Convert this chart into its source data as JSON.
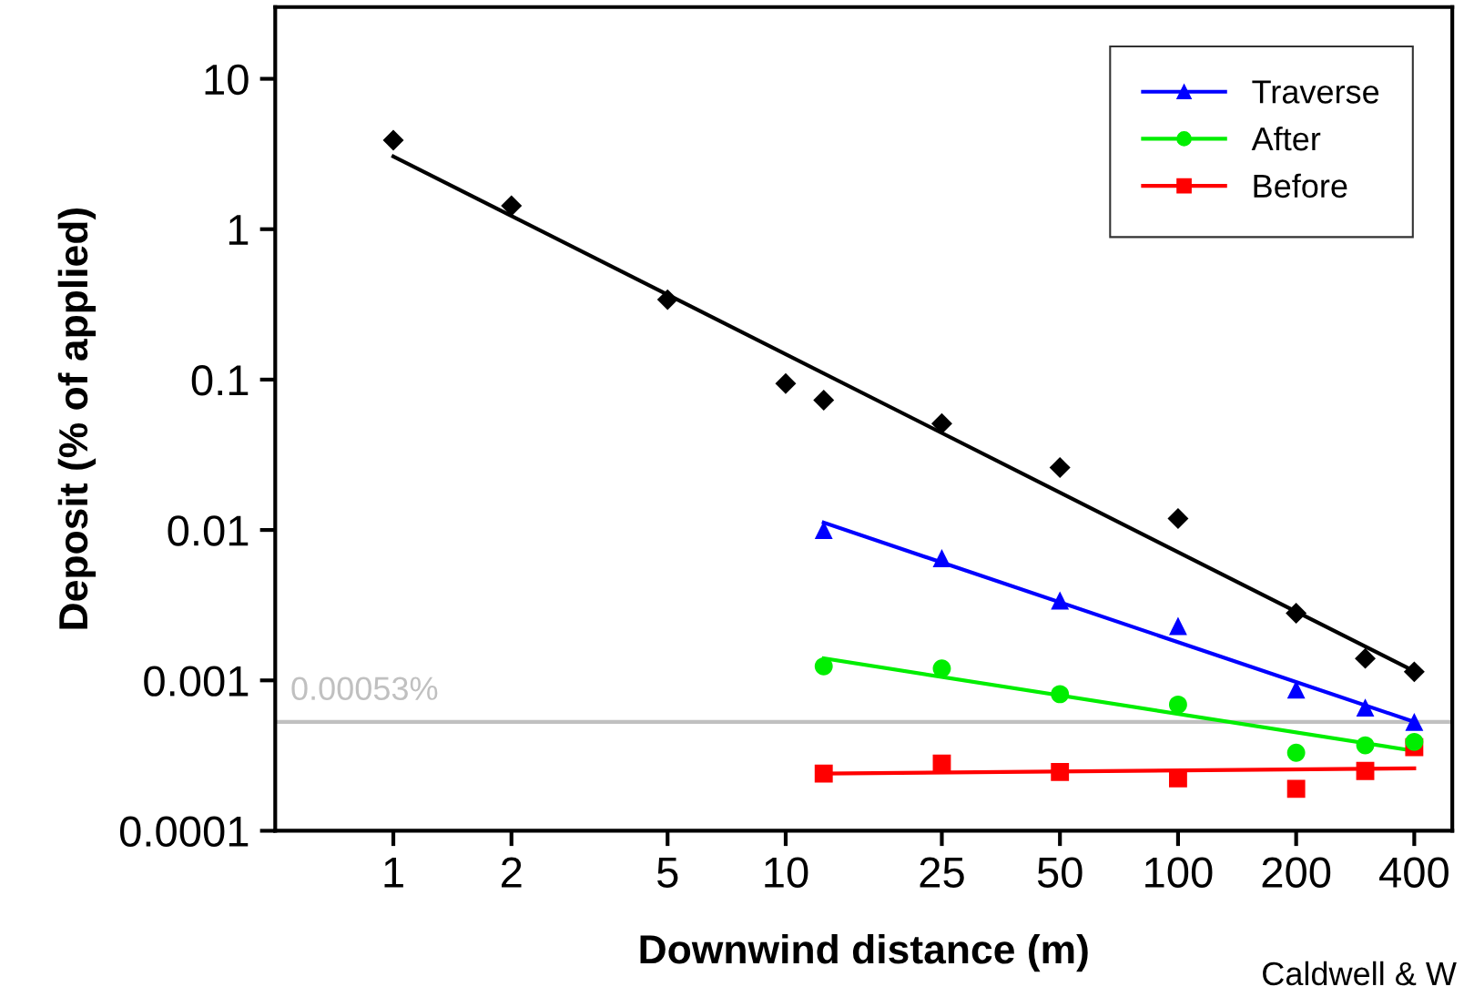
{
  "chart_data": {
    "type": "scatter",
    "xlabel": "Downwind distance (m)",
    "ylabel": "Deposit (% of applied)",
    "log": "xy",
    "grid": false,
    "legend": "top right",
    "x": [
      1,
      2,
      5,
      10,
      12.5,
      25,
      50,
      100,
      200,
      300,
      400
    ],
    "xlim": [
      0.5,
      500
    ],
    "xticks": [
      1,
      2,
      5,
      10,
      25,
      50,
      100,
      200,
      400
    ],
    "ylim": [
      0.0001,
      30
    ],
    "yticks": [
      0.0001,
      0.001,
      0.01,
      0.1,
      1,
      10
    ],
    "series": [
      {
        "color": "#000000",
        "marker": "diamond",
        "values": [
          3.9,
          1.43,
          0.34,
          0.094,
          0.073,
          0.051,
          0.026,
          0.0119,
          0.0028,
          0.0014,
          0.00114
        ]
      },
      {
        "name": "Traverse",
        "color": "#0000ff",
        "marker": "triangle",
        "x": [
          12.5,
          25,
          50,
          100,
          200,
          300,
          400
        ],
        "values": [
          0.01,
          0.0065,
          0.0034,
          0.0023,
          0.00087,
          0.00066,
          0.00053
        ]
      },
      {
        "name": "After",
        "color": "#00ee00",
        "marker": "circle",
        "x": [
          12.5,
          25,
          50,
          100,
          200,
          300,
          400
        ],
        "values": [
          0.00124,
          0.0012,
          0.00081,
          0.00069,
          0.00033,
          0.00037,
          0.00039
        ]
      },
      {
        "name": "Before",
        "color": "#ff0000",
        "marker": "square",
        "x": [
          12.5,
          25,
          50,
          100,
          200,
          300,
          400
        ],
        "values": [
          0.00024,
          0.00028,
          0.000246,
          0.000223,
          0.00019,
          0.00025,
          0.00036
        ]
      },
      {
        "type": "line",
        "color": "#000000",
        "marker": "none",
        "x": [
          1,
          400
        ],
        "values": [
          3.05,
          0.00115
        ]
      },
      {
        "type": "line",
        "color": "#0000ff",
        "marker": "none",
        "x": [
          12.5,
          400
        ],
        "values": [
          0.0112,
          0.00053
        ]
      },
      {
        "type": "line",
        "color": "#00ee00",
        "marker": "none",
        "x": [
          12.5,
          400
        ],
        "values": [
          0.0014,
          0.00034
        ]
      },
      {
        "type": "line",
        "color": "#ff0000",
        "marker": "none",
        "x": [
          12.5,
          400
        ],
        "values": [
          0.00024,
          0.00026
        ]
      }
    ],
    "ref_lines": [
      {
        "axis": "y",
        "value": 0.00053,
        "label": "0.00053%",
        "color": "#c0c0c0"
      }
    ],
    "annotations": [
      "Caldwell & W"
    ]
  }
}
